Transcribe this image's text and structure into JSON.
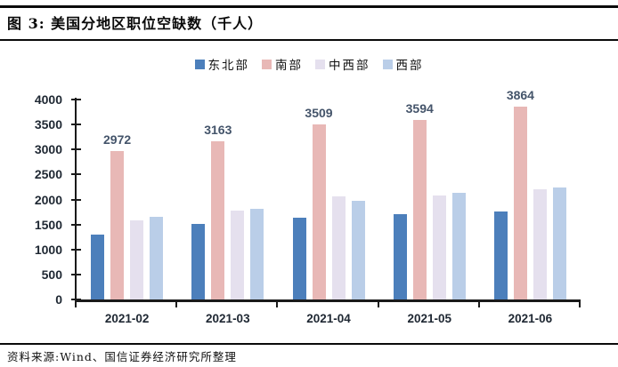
{
  "header": {
    "figure_title": "图 3: 美国分地区职位空缺数（千人）"
  },
  "chart_data": {
    "type": "bar",
    "title": "美国分地区职位空缺数（千人）",
    "categories": [
      "2021-02",
      "2021-03",
      "2021-04",
      "2021-05",
      "2021-06"
    ],
    "series": [
      {
        "name": "东北部",
        "color": "#4C7FBB",
        "values": [
          1300,
          1520,
          1640,
          1700,
          1760
        ],
        "data_labels": false
      },
      {
        "name": "南部",
        "color": "#E8B8B6",
        "values": [
          2972,
          3163,
          3509,
          3594,
          3864
        ],
        "data_labels": true
      },
      {
        "name": "中西部",
        "color": "#E5E0EE",
        "values": [
          1590,
          1780,
          2060,
          2080,
          2210
        ],
        "data_labels": false
      },
      {
        "name": "西部",
        "color": "#BACEE8",
        "values": [
          1660,
          1810,
          1975,
          2140,
          2240
        ],
        "data_labels": false
      }
    ],
    "ylim": [
      0,
      4000
    ],
    "ytick_step": 500,
    "yticks": [
      "4000",
      "3500",
      "3000",
      "2500",
      "2000",
      "1500",
      "1000",
      "500",
      "0"
    ],
    "legend_position": "top",
    "grid": false,
    "south_bar_labels": [
      "2972",
      "3163",
      "3509",
      "3594",
      "3864"
    ]
  },
  "footer": {
    "source": "资料来源:Wind、国信证券经济研究所整理"
  },
  "colors": {
    "axis_text": "#1e2732",
    "data_label": "#44546A",
    "rule": "#0a0a0a"
  }
}
